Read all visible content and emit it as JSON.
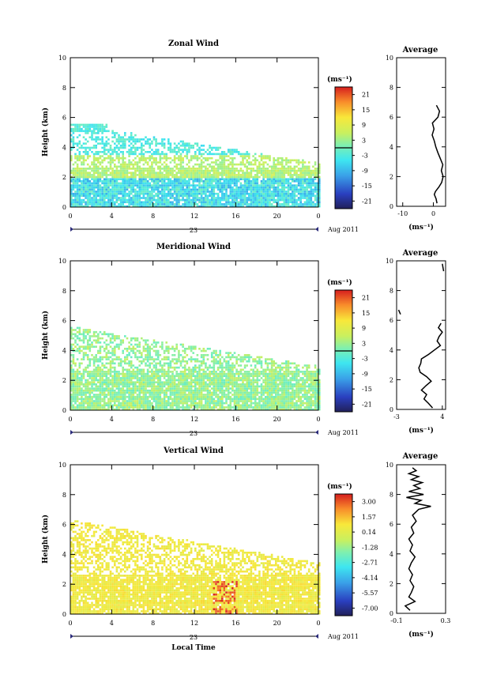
{
  "chart_data": [
    {
      "type": "heatmap",
      "title": "Zonal Wind",
      "ylabel": "Height (km)",
      "xlim": [
        0,
        24
      ],
      "ylim": [
        0,
        10
      ],
      "x_ticks": [
        "0",
        "4",
        "8",
        "12",
        "16",
        "20",
        "0"
      ],
      "y_ticks": [
        "0",
        "2",
        "4",
        "6",
        "8",
        "10"
      ],
      "date_day": "23",
      "date_month": "Aug 2011",
      "colorbar": {
        "unit": "(ms⁻¹)",
        "labels": [
          "21",
          "15",
          "9",
          "3",
          "-3",
          "-9",
          "-15",
          "-21"
        ],
        "range": [
          -24,
          24
        ],
        "zero_line": 0
      },
      "profile": {
        "title": "Average",
        "xlim": [
          -12,
          4
        ],
        "x_ticks": [
          "-10",
          "0"
        ],
        "xlabel": "(ms⁻¹)",
        "heights": [
          0.2,
          0.5,
          0.8,
          1.0,
          1.3,
          1.6,
          2.0,
          2.4,
          2.8,
          3.2,
          3.6,
          4.0,
          4.4,
          4.8,
          5.2,
          5.6,
          6.0,
          6.4,
          6.8
        ],
        "values": [
          1.2,
          0.9,
          0.3,
          0.7,
          1.8,
          2.7,
          3.2,
          2.6,
          3.1,
          2.3,
          1.5,
          0.8,
          0.3,
          -0.4,
          0.2,
          -0.3,
          1.5,
          2.0,
          1.0
        ]
      }
    },
    {
      "type": "heatmap",
      "title": "Meridional Wind",
      "ylabel": "Height (km)",
      "xlim": [
        0,
        24
      ],
      "ylim": [
        0,
        10
      ],
      "x_ticks": [
        "0",
        "4",
        "8",
        "12",
        "16",
        "20",
        "0"
      ],
      "y_ticks": [
        "0",
        "2",
        "4",
        "6",
        "8",
        "10"
      ],
      "date_day": "23",
      "date_month": "Aug 2011",
      "colorbar": {
        "unit": "(ms⁻¹)",
        "labels": [
          "21",
          "15",
          "9",
          "3",
          "-3",
          "-9",
          "-15",
          "-21"
        ],
        "range": [
          -24,
          24
        ],
        "zero_line": 0
      },
      "profile": {
        "title": "Average",
        "xlim": [
          -3,
          4.5
        ],
        "x_ticks": [
          "-3",
          "4"
        ],
        "xlabel": "(ms⁻¹)",
        "heights": [
          0.1,
          0.4,
          0.7,
          1.0,
          1.3,
          1.6,
          1.9,
          2.2,
          2.5,
          2.8,
          3.1,
          3.4,
          3.7,
          4.0,
          4.3,
          4.6,
          4.9,
          5.2,
          5.5,
          5.8
        ],
        "values": [
          2.5,
          1.9,
          1.2,
          1.6,
          0.8,
          1.5,
          2.3,
          1.6,
          0.6,
          0.4,
          0.7,
          0.8,
          1.9,
          2.8,
          3.7,
          3.2,
          3.5,
          4.0,
          3.4,
          3.8
        ],
        "top_segment_heights": [
          6.4,
          6.7
        ],
        "top_segment_values": [
          -2.4,
          -2.7
        ],
        "upper_segment_heights": [
          9.3,
          9.8
        ],
        "upper_segment_values": [
          4.2,
          4.0
        ]
      }
    },
    {
      "type": "heatmap",
      "title": "Vertical Wind",
      "xlabel": "Local Time",
      "ylabel": "Height (km)",
      "xlim": [
        0,
        24
      ],
      "ylim": [
        0,
        10
      ],
      "x_ticks": [
        "0",
        "4",
        "8",
        "12",
        "16",
        "20",
        "0"
      ],
      "y_ticks": [
        "0",
        "2",
        "4",
        "6",
        "8",
        "10"
      ],
      "date_day": "23",
      "date_month": "Aug 2011",
      "colorbar": {
        "unit": "(ms⁻¹)",
        "labels": [
          "3.00",
          "1.57",
          "0.14",
          "-1.28",
          "-2.71",
          "-4.14",
          "-5.57",
          "-7.00"
        ],
        "range": [
          -7.7,
          3.7
        ]
      },
      "profile": {
        "title": "Average",
        "xlim": [
          -0.1,
          0.3
        ],
        "x_ticks": [
          "-0.1",
          "0.3"
        ],
        "xlabel": "(ms⁻¹)",
        "heights": [
          0.2,
          0.5,
          0.8,
          1.1,
          1.4,
          1.8,
          2.2,
          2.6,
          3.0,
          3.4,
          3.8,
          4.2,
          4.6,
          5.0,
          5.4,
          5.8,
          6.2,
          6.6,
          7.0,
          7.2,
          7.4,
          7.6,
          7.8,
          8.0,
          8.2,
          8.4,
          8.6,
          8.8,
          9.0,
          9.2,
          9.4,
          9.6,
          9.8
        ],
        "values": [
          0.01,
          -0.03,
          0.05,
          0.0,
          0.02,
          0.04,
          0.01,
          0.03,
          0.0,
          0.02,
          0.05,
          0.01,
          0.03,
          0.0,
          0.04,
          0.02,
          0.06,
          0.03,
          0.08,
          0.18,
          0.05,
          0.1,
          -0.02,
          0.12,
          0.0,
          0.09,
          0.04,
          0.11,
          0.02,
          0.08,
          0.0,
          0.06,
          0.03
        ]
      }
    }
  ]
}
